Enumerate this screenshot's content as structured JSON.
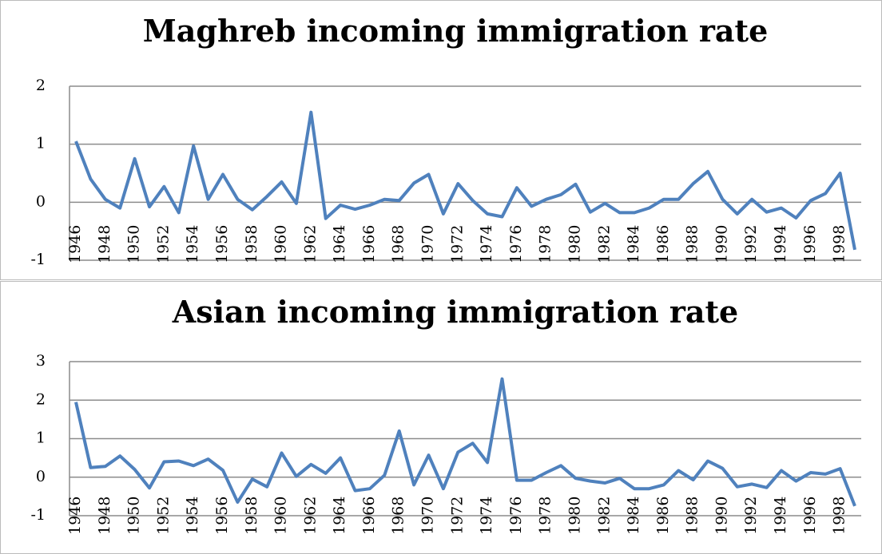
{
  "chart_data": [
    {
      "type": "line",
      "title": "Maghreb incoming immigration rate",
      "categories": [
        "1946",
        null,
        "1948",
        null,
        "1950",
        null,
        "1952",
        null,
        "1954",
        null,
        "1956",
        null,
        "1958",
        null,
        "1960",
        null,
        "1962",
        null,
        "1964",
        null,
        "1966",
        null,
        "1968",
        null,
        "1970",
        null,
        "1972",
        null,
        "1974",
        null,
        "1976",
        null,
        "1978",
        null,
        "1980",
        null,
        "1982",
        null,
        "1984",
        null,
        "1986",
        null,
        "1988",
        null,
        "1990",
        null,
        "1992",
        null,
        "1994",
        null,
        "1996",
        null,
        "1998",
        null
      ],
      "series": [
        {
          "color": "#4f81bd",
          "values": [
            1.05,
            0.4,
            0.05,
            -0.1,
            0.75,
            -0.08,
            0.27,
            -0.18,
            0.97,
            0.05,
            0.48,
            0.05,
            -0.13,
            0.1,
            0.35,
            -0.02,
            1.55,
            -0.28,
            -0.05,
            -0.12,
            -0.05,
            0.05,
            0.03,
            0.33,
            0.48,
            -0.2,
            0.32,
            0.03,
            -0.2,
            -0.25,
            0.25,
            -0.07,
            0.05,
            0.13,
            0.31,
            -0.17,
            -0.02,
            -0.18,
            -0.18,
            -0.1,
            0.05,
            0.05,
            0.32,
            0.53,
            0.05,
            -0.2,
            0.05,
            -0.17,
            -0.1,
            -0.27,
            0.03,
            0.15,
            0.5,
            -0.82
          ]
        }
      ],
      "ylim": [
        -1,
        2
      ],
      "yticks": [
        -1,
        0,
        1,
        2
      ],
      "grid": true
    },
    {
      "type": "line",
      "title": "Asian incoming immigration rate",
      "categories": [
        "1946",
        null,
        "1948",
        null,
        "1950",
        null,
        "1952",
        null,
        "1954",
        null,
        "1956",
        null,
        "1958",
        null,
        "1960",
        null,
        "1962",
        null,
        "1964",
        null,
        "1966",
        null,
        "1968",
        null,
        "1970",
        null,
        "1972",
        null,
        "1974",
        null,
        "1976",
        null,
        "1978",
        null,
        "1980",
        null,
        "1982",
        null,
        "1984",
        null,
        "1986",
        null,
        "1988",
        null,
        "1990",
        null,
        "1992",
        null,
        "1994",
        null,
        "1996",
        null,
        "1998",
        null
      ],
      "series": [
        {
          "color": "#4f81bd",
          "values": [
            1.95,
            0.25,
            0.28,
            0.55,
            0.2,
            -0.28,
            0.4,
            0.42,
            0.3,
            0.47,
            0.18,
            -0.65,
            -0.05,
            -0.25,
            0.63,
            0.02,
            0.33,
            0.1,
            0.5,
            -0.35,
            -0.3,
            0.05,
            1.2,
            -0.2,
            0.57,
            -0.3,
            0.65,
            0.88,
            0.38,
            2.55,
            -0.08,
            -0.08,
            0.12,
            0.3,
            -0.03,
            -0.1,
            -0.15,
            -0.03,
            -0.3,
            -0.3,
            -0.2,
            0.17,
            -0.07,
            0.42,
            0.23,
            -0.25,
            -0.18,
            -0.27,
            0.17,
            -0.1,
            0.12,
            0.08,
            0.22,
            -0.75
          ]
        }
      ],
      "ylim": [
        -1,
        3
      ],
      "yticks": [
        -1,
        0,
        1,
        2,
        3
      ],
      "grid": true
    }
  ]
}
